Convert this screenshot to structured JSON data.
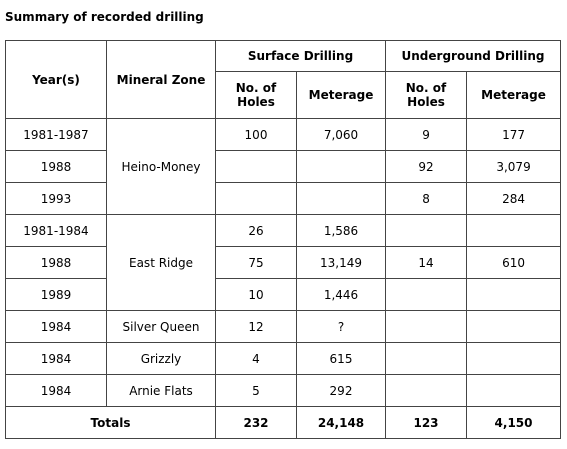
{
  "header": {
    "title": "Summary of recorded drilling"
  },
  "table": {
    "columns": {
      "year": "Year(s)",
      "zone": "Mineral Zone",
      "surface": "Surface Drilling",
      "underground": "Underground Drilling",
      "surface_holes": "No. of Holes",
      "surface_meterage": "Meterage",
      "underground_holes": "No. of Holes",
      "underground_meterage": "Meterage"
    },
    "rows": [
      {
        "year": "1981-1987",
        "zone": "Heino-Money",
        "surface_holes": "100",
        "surface_meterage": "7,060",
        "underground_holes": "9",
        "underground_meterage": "177"
      },
      {
        "year": "1988",
        "underground_holes": "92",
        "underground_meterage": "3,079"
      },
      {
        "year": "1993",
        "underground_holes": "8",
        "underground_meterage": "284"
      },
      {
        "year": "1981-1984",
        "zone": "East Ridge",
        "surface_holes": "26",
        "surface_meterage": "1,586"
      },
      {
        "year": "1988",
        "surface_holes": "75",
        "surface_meterage": "13,149",
        "underground_holes": "14",
        "underground_meterage": "610"
      },
      {
        "year": "1989",
        "surface_holes": "10",
        "surface_meterage": "1,446"
      },
      {
        "year": "1984",
        "zone": "Silver Queen",
        "surface_holes": "12",
        "surface_meterage": "?"
      },
      {
        "year": "1984",
        "zone": "Grizzly",
        "surface_holes": "4",
        "surface_meterage": "615"
      },
      {
        "year": "1984",
        "zone": "Arnie Flats",
        "surface_holes": "5",
        "surface_meterage": "292"
      }
    ],
    "totals": {
      "label": "Totals",
      "surface_holes": "232",
      "surface_meterage": "24,148",
      "underground_holes": "123",
      "underground_meterage": "4,150"
    }
  }
}
